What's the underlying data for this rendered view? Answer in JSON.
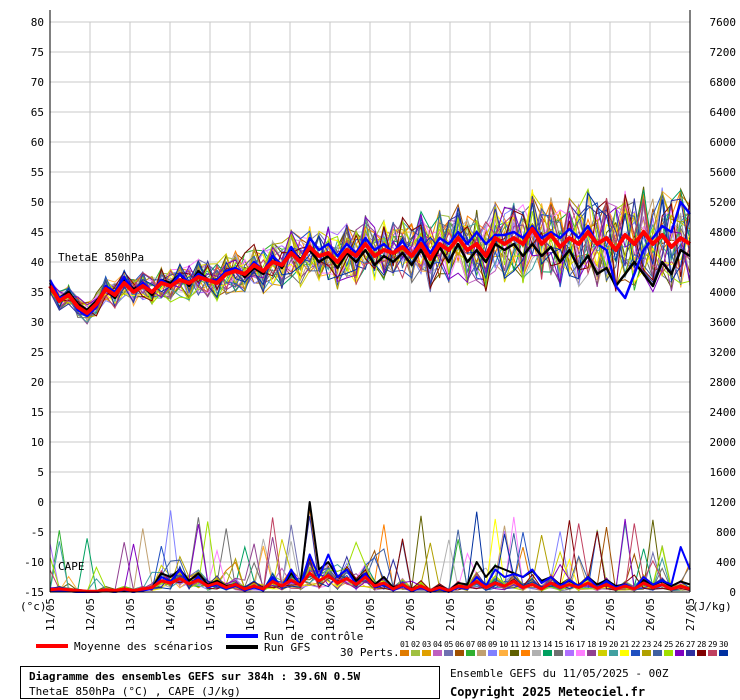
{
  "chart_data": {
    "type": "line",
    "left_axis": {
      "unit": "(°c)",
      "ylim": [
        -15,
        80
      ],
      "ticks": [
        "80",
        "75",
        "70",
        "65",
        "60",
        "55",
        "50",
        "45",
        "40",
        "35",
        "30",
        "25",
        "20",
        "15",
        "10",
        "5",
        "0",
        "-5",
        "-10",
        "-15"
      ]
    },
    "right_axis": {
      "unit": "(J/kg)",
      "ylim": [
        0,
        7600
      ],
      "ticks": [
        "7600",
        "7200",
        "6800",
        "6400",
        "6000",
        "5600",
        "5200",
        "4800",
        "4400",
        "4000",
        "3600",
        "3200",
        "2800",
        "2400",
        "2000",
        "1600",
        "1200",
        "800",
        "400",
        "0"
      ]
    },
    "x_ticks": [
      "11/05",
      "12/05",
      "13/05",
      "14/05",
      "15/05",
      "16/05",
      "17/05",
      "18/05",
      "19/05",
      "20/05",
      "21/05",
      "22/05",
      "23/05",
      "24/05",
      "25/05",
      "26/05",
      "27/05"
    ],
    "x_range_days": [
      0,
      16
    ],
    "grid": true,
    "panel_labels": {
      "theta": "ThetaE 850hPa",
      "cape": "CAPE"
    },
    "theta_series": {
      "mean": {
        "name": "Moyenne des scénarios",
        "color": "#ff0000",
        "values": [
          36,
          33.5,
          34.5,
          32.5,
          31.5,
          33,
          35.5,
          34.5,
          36.5,
          35,
          36,
          35,
          36.5,
          36,
          37,
          36.5,
          37.5,
          37,
          36.5,
          38,
          38.5,
          38,
          39.5,
          38.5,
          40,
          39.5,
          41.5,
          40,
          42.5,
          41,
          41.5,
          40,
          42,
          41,
          43,
          41,
          42,
          41.5,
          42.5,
          41,
          43,
          40.5,
          43,
          42,
          44,
          42,
          43,
          41,
          44,
          43,
          44,
          43,
          45.5,
          43,
          44.5,
          42.5,
          44,
          43,
          45,
          43,
          44,
          42,
          44.5,
          43,
          45,
          43,
          44.5,
          42.5,
          44,
          43
        ]
      },
      "control": {
        "name": "Run de contrôle",
        "color": "#0000ff",
        "values": [
          37,
          34,
          34.5,
          32,
          31,
          32.5,
          36,
          35,
          37.5,
          35,
          36.5,
          35,
          37,
          36,
          38,
          36.5,
          38,
          37,
          37,
          38.5,
          39,
          38,
          40,
          38.5,
          41,
          39.5,
          42.5,
          40,
          44,
          42,
          43,
          41,
          43,
          41.5,
          44,
          42,
          43,
          41.5,
          43.5,
          41,
          44,
          41.5,
          44,
          43,
          45,
          43,
          45,
          43,
          44.5,
          44.5,
          45,
          44,
          46,
          44,
          45,
          44,
          45.5,
          44,
          46,
          43,
          42,
          36,
          34,
          38,
          42,
          44,
          46,
          45,
          50,
          48
        ]
      },
      "gfs": {
        "name": "Run GFS",
        "color": "#000000",
        "values": [
          36.5,
          34,
          35,
          33,
          32,
          33.5,
          35.5,
          34,
          37,
          35.5,
          36,
          34.5,
          37,
          36.5,
          38,
          36,
          38.5,
          37,
          37,
          38,
          39,
          37.5,
          39,
          38,
          41,
          39,
          42,
          40.5,
          42,
          40,
          41,
          39,
          41.5,
          40,
          42,
          39.5,
          41,
          40,
          41.5,
          39.5,
          42,
          39,
          42.5,
          40,
          43,
          40,
          42,
          40,
          43,
          42,
          43,
          41,
          43,
          41,
          42.5,
          40,
          42,
          39,
          41,
          38,
          39,
          36,
          38,
          40,
          38,
          36,
          40,
          38,
          42,
          41
        ]
      }
    },
    "cape_series": {
      "mean": {
        "color": "#ff0000",
        "values": [
          30,
          40,
          30,
          20,
          10,
          10,
          30,
          20,
          40,
          20,
          40,
          60,
          150,
          120,
          180,
          110,
          160,
          80,
          120,
          60,
          100,
          40,
          80,
          40,
          140,
          80,
          160,
          90,
          250,
          150,
          220,
          120,
          180,
          100,
          200,
          80,
          120,
          40,
          100,
          30,
          80,
          20,
          60,
          20,
          80,
          60,
          140,
          60,
          120,
          80,
          140,
          60,
          100,
          40,
          120,
          60,
          100,
          60,
          120,
          50,
          100,
          40,
          80,
          40,
          120,
          60,
          100,
          40,
          80,
          40
        ]
      },
      "control": {
        "color": "#0000ff",
        "values": [
          20,
          20,
          10,
          0,
          0,
          0,
          20,
          0,
          30,
          0,
          20,
          40,
          200,
          140,
          300,
          100,
          200,
          60,
          100,
          40,
          80,
          20,
          60,
          20,
          200,
          60,
          300,
          80,
          500,
          200,
          500,
          200,
          300,
          100,
          250,
          60,
          100,
          20,
          80,
          10,
          60,
          0,
          40,
          0,
          60,
          40,
          200,
          80,
          300,
          200,
          240,
          200,
          300,
          120,
          200,
          80,
          160,
          80,
          200,
          60,
          150,
          60,
          100,
          40,
          200,
          100,
          150,
          100,
          600,
          300
        ]
      },
      "gfs": {
        "color": "#000000",
        "values": [
          30,
          30,
          10,
          0,
          0,
          0,
          10,
          0,
          20,
          0,
          40,
          60,
          250,
          200,
          300,
          150,
          250,
          100,
          150,
          80,
          100,
          40,
          80,
          40,
          150,
          60,
          250,
          100,
          1200,
          300,
          400,
          200,
          300,
          150,
          250,
          100,
          200,
          60,
          100,
          40,
          80,
          20,
          80,
          20,
          120,
          100,
          400,
          200,
          350,
          300,
          250,
          200,
          280,
          150,
          200,
          100,
          150,
          80,
          200,
          100,
          160,
          80,
          100,
          40,
          160,
          100,
          140,
          80,
          140,
          100
        ]
      }
    },
    "title": "Diagramme des ensembles GEFS sur 384h : 39.6N 0.5W",
    "subtitle": "ThetaE 850hPa (°C) , CAPE (J/kg)",
    "run_info": "Ensemble GEFS du 11/05/2025 - 00Z",
    "copyright": "Copyright 2025 Meteociel.fr",
    "perts_label": "30 Perts.",
    "perts_numbers": [
      "01",
      "02",
      "03",
      "04",
      "05",
      "06",
      "07",
      "08",
      "09",
      "10",
      "11",
      "12",
      "13",
      "14",
      "15",
      "16",
      "17",
      "18",
      "19",
      "20",
      "21",
      "22",
      "23",
      "24",
      "25",
      "26",
      "27",
      "28",
      "29",
      "30"
    ],
    "perts_colors": [
      "#e07b00",
      "#a0c040",
      "#e0a000",
      "#c060c0",
      "#7070b0",
      "#a05000",
      "#30b030",
      "#c0a070",
      "#8080ff",
      "#ffb040",
      "#606000",
      "#ff8000",
      "#b0b0b0",
      "#00a060",
      "#707070",
      "#b070ff",
      "#ff80ff",
      "#904090",
      "#d0d000",
      "#40a0a0",
      "#ffff00",
      "#2050c0",
      "#b0a000",
      "#4060a0",
      "#a0e000",
      "#8000c0",
      "#3030a0",
      "#800000",
      "#c04060",
      "#0030a0"
    ],
    "legend": {
      "mean_label": "Moyenne des scénarios",
      "control_label": "Run de contrôle",
      "gfs_label": "Run GFS"
    }
  }
}
